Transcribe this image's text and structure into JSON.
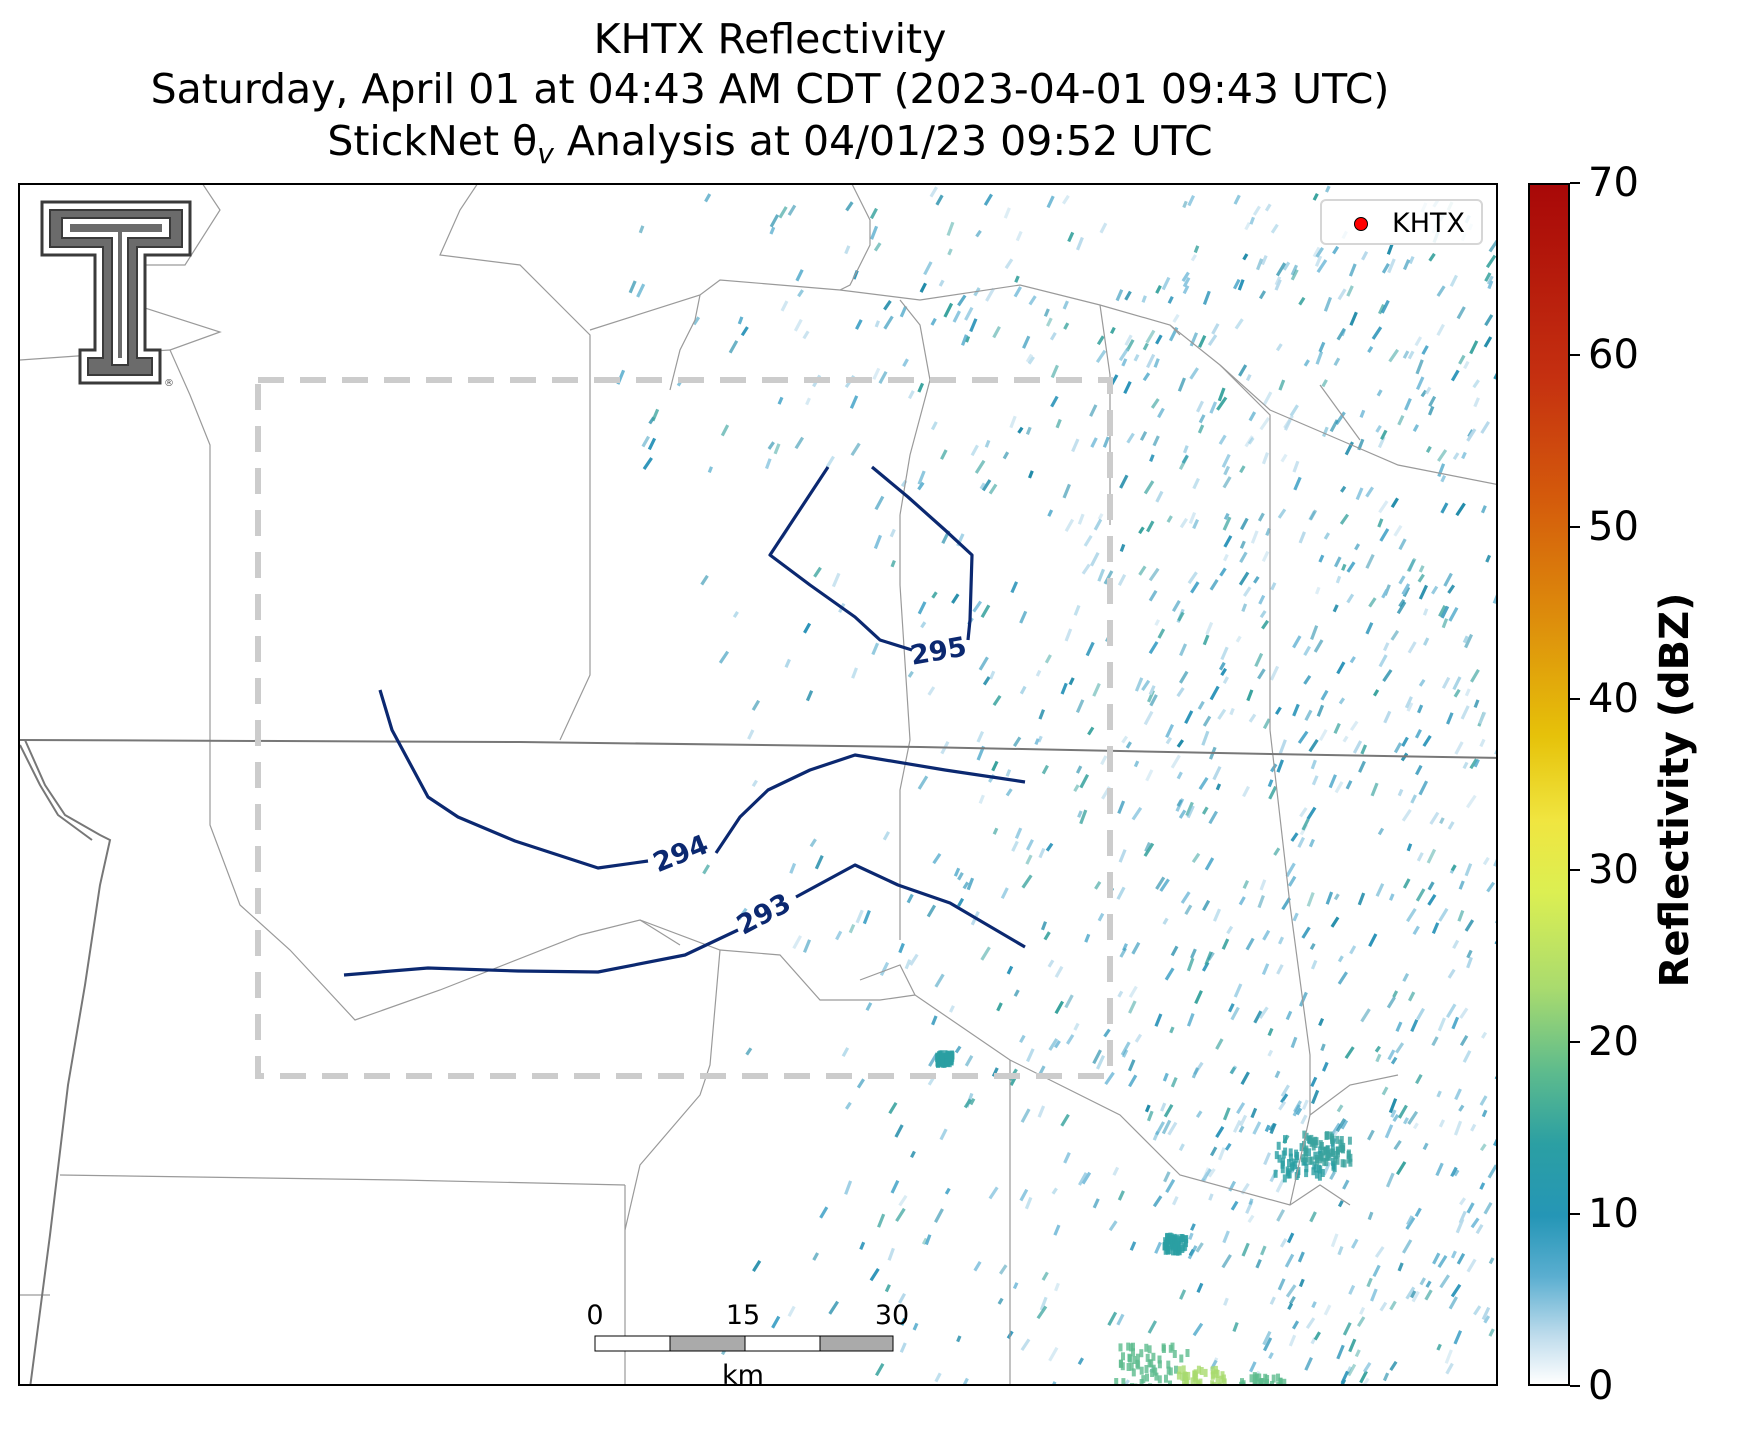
{
  "title": {
    "line1": "KHTX Reflectivity",
    "line2": "Saturday, April 01 at 04:43 AM CDT (2023-04-01 09:43 UTC)",
    "line3": "StickNet θv Analysis at 04/01/23 09:52 UTC"
  },
  "legend": {
    "label": "KHTX",
    "marker_color": "#ff0000"
  },
  "logo": {
    "name": "Texas Tech double-T logo",
    "mark": "®"
  },
  "colorbar": {
    "label": "Reflectivity (dBZ)",
    "min": 0,
    "max": 70,
    "ticks": [
      "0",
      "10",
      "20",
      "30",
      "40",
      "50",
      "60",
      "70"
    ]
  },
  "scalebar": {
    "ticks": [
      "0",
      "15",
      "30"
    ],
    "unit": "km"
  },
  "contours": [
    {
      "label": "295",
      "color": "#0b2870"
    },
    {
      "label": "294",
      "color": "#0b2870"
    },
    {
      "label": "293",
      "color": "#0b2870"
    }
  ],
  "analysis_domain": {
    "style": "dashed",
    "color": "#cccccc"
  },
  "colors": {
    "contour": "#0b2870",
    "boundaries": "#9a9a9a",
    "state_line": "#777777"
  }
}
